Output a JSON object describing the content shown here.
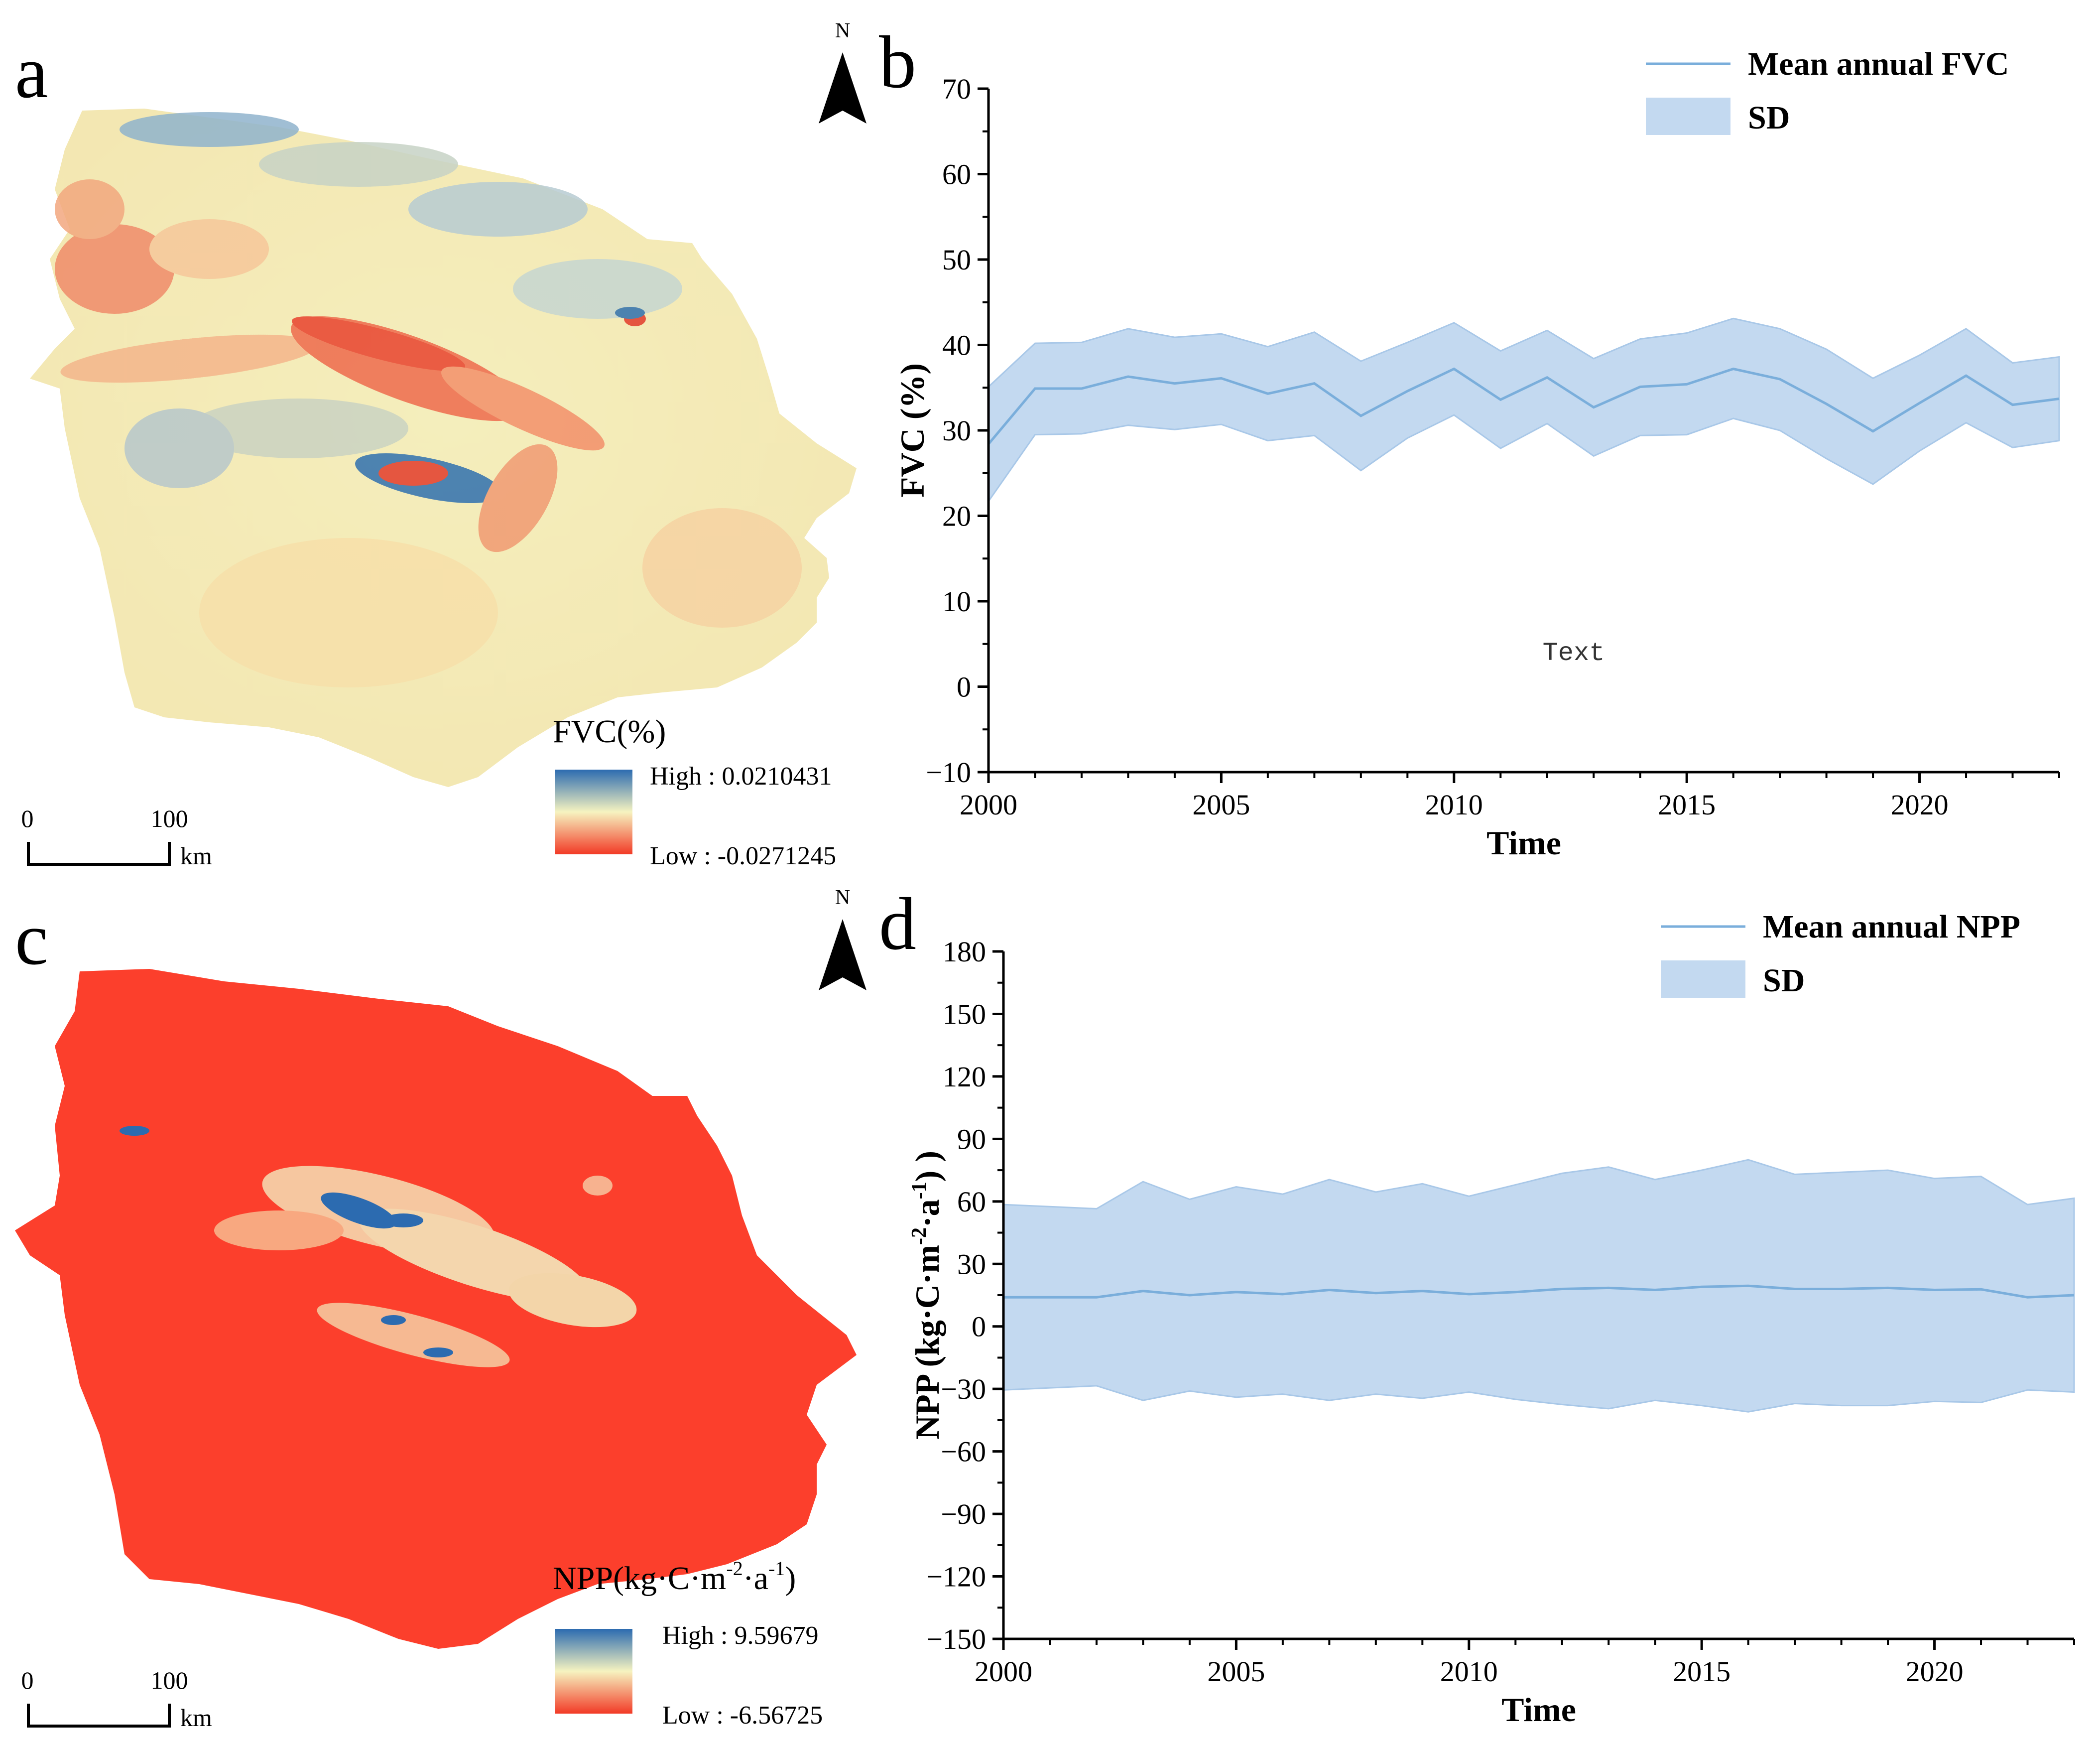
{
  "colors": {
    "sd_fill": "#c3d9f0",
    "mean_line": "#7aaedb",
    "axis": "#000000",
    "npp_map_fill": "#fc3f2c",
    "fvc_map_base": "#f6f3bd",
    "ramp_high": "#2c6bb0",
    "ramp_mid": "#f6f3c0",
    "ramp_low": "#f23a26"
  },
  "panels": {
    "a": {
      "letter": "a",
      "north": "N",
      "legend_title": "FVC(%)",
      "legend_high": "High : 0.0210431",
      "legend_low": "Low : -0.0271245",
      "scale_zero": "0",
      "scale_hundred": "100",
      "scale_unit": "km"
    },
    "b": {
      "letter": "b"
    },
    "c": {
      "letter": "c",
      "north": "N",
      "legend_title_base": "NPP(kg·C·m",
      "legend_title_sup1": "-2",
      "legend_title_mid": "·a",
      "legend_title_sup2": "-1",
      "legend_title_end": ")",
      "legend_high": "High : 9.59679",
      "legend_low": "Low : -6.56725",
      "scale_zero": "0",
      "scale_hundred": "100",
      "scale_unit": "km"
    },
    "d": {
      "letter": "d"
    }
  },
  "chart_data": [
    {
      "id": "b",
      "type": "area",
      "title": "",
      "xlabel": "Time",
      "ylabel": "FVC (%)",
      "xlim": [
        2000,
        2023
      ],
      "ylim": [
        -10,
        70
      ],
      "xticks": [
        2000,
        2005,
        2010,
        2015,
        2020
      ],
      "yticks": [
        -10,
        0,
        10,
        20,
        30,
        40,
        50,
        60,
        70
      ],
      "annotation": "Text",
      "legend": {
        "position": "top-right",
        "line_label": "Mean annual FVC",
        "band_label": "SD"
      },
      "x": [
        2000,
        2001,
        2002,
        2003,
        2004,
        2005,
        2006,
        2007,
        2008,
        2009,
        2010,
        2011,
        2012,
        2013,
        2014,
        2015,
        2016,
        2017,
        2018,
        2019,
        2020,
        2021,
        2022,
        2023
      ],
      "series": [
        {
          "name": "Mean annual FVC",
          "values": [
            28.4,
            34.9,
            34.9,
            36.3,
            35.5,
            36.1,
            34.3,
            35.5,
            31.7,
            34.6,
            37.2,
            33.6,
            36.2,
            32.7,
            35.1,
            35.4,
            37.2,
            36.0,
            33.1,
            29.9,
            33.2,
            36.4,
            33.0,
            33.7
          ]
        },
        {
          "name": "SD upper",
          "values": [
            35.1,
            40.2,
            40.3,
            41.9,
            40.9,
            41.3,
            39.8,
            41.5,
            38.1,
            40.3,
            42.6,
            39.3,
            41.7,
            38.4,
            40.7,
            41.4,
            43.1,
            41.9,
            39.5,
            36.1,
            38.8,
            41.9,
            37.9,
            38.6
          ]
        },
        {
          "name": "SD lower",
          "values": [
            21.7,
            29.5,
            29.6,
            30.6,
            30.1,
            30.7,
            28.8,
            29.4,
            25.3,
            29.1,
            31.8,
            27.9,
            30.8,
            27.0,
            29.4,
            29.5,
            31.4,
            30.0,
            26.7,
            23.7,
            27.6,
            30.9,
            28.0,
            28.8
          ]
        }
      ]
    },
    {
      "id": "d",
      "type": "area",
      "title": "",
      "xlabel": "Time",
      "ylabel_base": "NPP (kg·C·m",
      "ylabel_sup1": "-2",
      "ylabel_mid": "·a",
      "ylabel_sup2": "-1",
      "ylabel_end": ") )",
      "xlim": [
        2000,
        2023
      ],
      "ylim": [
        -150,
        180
      ],
      "xticks": [
        2000,
        2005,
        2010,
        2015,
        2020
      ],
      "yticks": [
        -150,
        -120,
        -90,
        -60,
        -30,
        0,
        30,
        60,
        90,
        120,
        150,
        180
      ],
      "legend": {
        "position": "top-right",
        "line_label": "Mean annual NPP",
        "band_label": "SD"
      },
      "x": [
        2000,
        2001,
        2002,
        2003,
        2004,
        2005,
        2006,
        2007,
        2008,
        2009,
        2010,
        2011,
        2012,
        2013,
        2014,
        2015,
        2016,
        2017,
        2018,
        2019,
        2020,
        2021,
        2022,
        2023
      ],
      "series": [
        {
          "name": "Mean annual NPP",
          "values": [
            14.0,
            14.0,
            14.0,
            17.0,
            15.0,
            16.5,
            15.5,
            17.5,
            16.0,
            17.0,
            15.5,
            16.5,
            18.0,
            18.5,
            17.5,
            19.0,
            19.5,
            18.0,
            18.0,
            18.5,
            17.5,
            17.8,
            14.0,
            15.0
          ]
        },
        {
          "name": "SD upper",
          "values": [
            58.5,
            57.5,
            56.5,
            69.5,
            61.0,
            67.0,
            63.5,
            70.5,
            64.5,
            68.5,
            62.5,
            68.0,
            73.5,
            76.5,
            70.5,
            75.0,
            80.0,
            73.0,
            74.0,
            75.0,
            71.0,
            72.0,
            58.5,
            61.5
          ]
        },
        {
          "name": "SD lower",
          "values": [
            -30.5,
            -29.5,
            -28.5,
            -35.5,
            -31.0,
            -34.0,
            -32.5,
            -35.5,
            -32.5,
            -34.5,
            -31.5,
            -35.0,
            -37.5,
            -39.5,
            -35.5,
            -38.0,
            -41.0,
            -37.0,
            -38.0,
            -38.0,
            -36.0,
            -36.5,
            -30.5,
            -31.5
          ]
        }
      ]
    }
  ]
}
